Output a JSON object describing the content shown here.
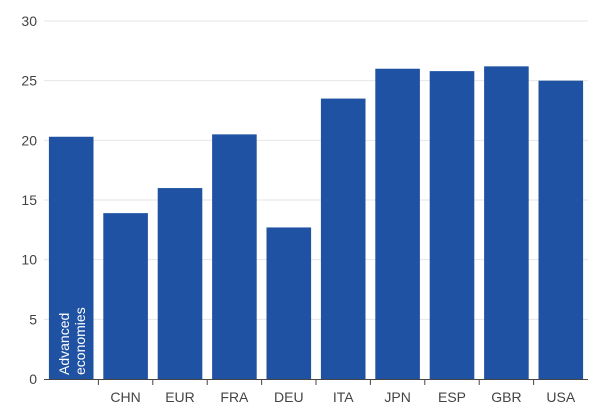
{
  "chart_data": {
    "type": "bar",
    "title": "",
    "xlabel": "",
    "ylabel": "",
    "categories": [
      "Advanced economies",
      "CHN",
      "EUR",
      "FRA",
      "DEU",
      "ITA",
      "JPN",
      "ESP",
      "GBR",
      "USA"
    ],
    "category_display": [
      [
        "Advanced",
        "economies"
      ],
      "CHN",
      "EUR",
      "FRA",
      "DEU",
      "ITA",
      "JPN",
      "ESP",
      "GBR",
      "USA"
    ],
    "values": [
      20.3,
      13.9,
      16.0,
      20.5,
      12.7,
      23.5,
      26.0,
      25.8,
      26.2,
      25.0
    ],
    "ylim": [
      0,
      30
    ],
    "yticks": [
      0,
      5,
      10,
      15,
      20,
      25,
      30
    ],
    "grid": true,
    "legend": "none",
    "colors": {
      "bar": "#1f52a3",
      "grid": "#e6e6e6",
      "axis": "#444444",
      "text": "#444444"
    }
  }
}
